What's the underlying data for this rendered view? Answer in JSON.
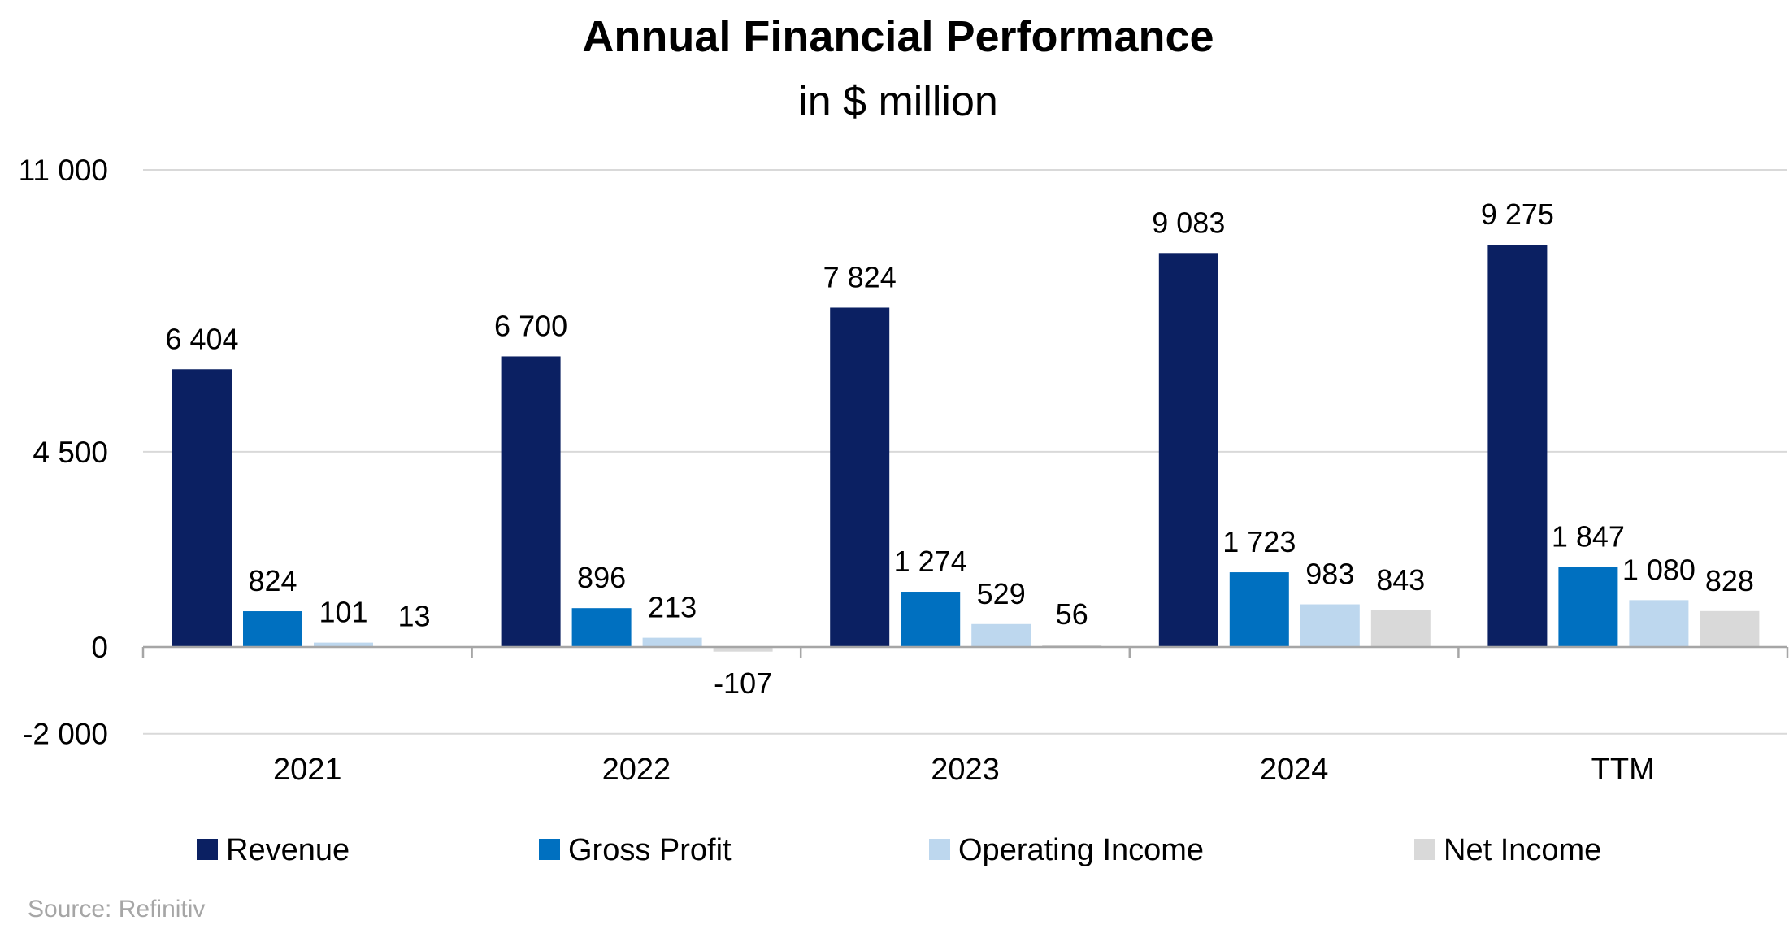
{
  "chart_data": {
    "type": "bar",
    "title": "Annual Financial Performance",
    "subtitle": "in $ million",
    "categories": [
      "2021",
      "2022",
      "2023",
      "2024",
      "TTM"
    ],
    "series": [
      {
        "name": "Revenue",
        "color": "#0b2062",
        "values": [
          6404,
          6700,
          7824,
          9083,
          9275
        ]
      },
      {
        "name": "Gross Profit",
        "color": "#0070c0",
        "values": [
          824,
          896,
          1274,
          1723,
          1847
        ]
      },
      {
        "name": "Operating Income",
        "color": "#bdd7ee",
        "values": [
          101,
          213,
          529,
          983,
          1080
        ]
      },
      {
        "name": "Net Income",
        "color": "#d9d9d9",
        "values": [
          13,
          -107,
          56,
          843,
          828
        ]
      }
    ],
    "data_labels": [
      [
        "6 404",
        "6 700",
        "7 824",
        "9 083",
        "9 275"
      ],
      [
        "824",
        "896",
        "1 274",
        "1 723",
        "1 847"
      ],
      [
        "101",
        "213",
        "529",
        "983",
        "1 080"
      ],
      [
        "13",
        "-107",
        "56",
        "843",
        "828"
      ]
    ],
    "yticks": [
      11000,
      4500,
      0,
      -2000
    ],
    "ytick_labels": [
      "11 000",
      "4 500",
      "0",
      "-2 000"
    ],
    "ylim": [
      -2000,
      11000
    ],
    "xlabel": "",
    "ylabel": "",
    "grid": true,
    "legend_position": "bottom",
    "source": "Source: Refinitiv"
  }
}
